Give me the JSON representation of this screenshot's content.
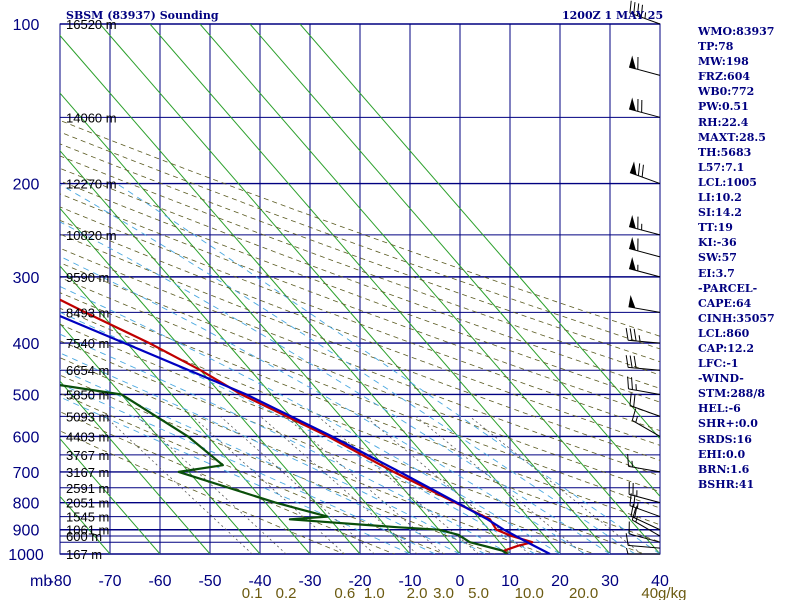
{
  "header": {
    "station": "SBSM (83937) Sounding",
    "time": "1200Z  1 MAY 25"
  },
  "indices": [
    "WMO:83937",
    "TP:78",
    "MW:198",
    "FRZ:604",
    "WB0:772",
    "PW:0.51",
    "RH:22.4",
    "MAXT:28.5",
    "TH:5683",
    "L57:7.1",
    "LCL:1005",
    "LI:10.2",
    "SI:14.2",
    "TT:19",
    "KI:-36",
    "SW:57",
    "EI:3.7",
    "-PARCEL-",
    "CAPE:64",
    "CINH:35057",
    "LCL:860",
    "CAP:12.2",
    "LFC:-1",
    "-WIND-",
    "STM:288/8",
    "HEL:-6",
    "SHR+:0.0",
    "SRDS:16",
    "EHI:0.0",
    "BRN:1.6",
    "BSHR:41"
  ],
  "chart_data": {
    "type": "line",
    "title": "SBSM (83937) Sounding",
    "xlabel": "",
    "ylabel": "mb",
    "y_scale": "log-pressure (skew-T)",
    "x_range_at_1000mb": [
      -80,
      40
    ],
    "y_range": [
      1000,
      100
    ],
    "pressure_ticks": [
      100,
      200,
      300,
      400,
      500,
      600,
      700,
      800,
      900,
      1000
    ],
    "temperature_ticks": [
      -80,
      -70,
      -60,
      -50,
      -40,
      -30,
      -20,
      -10,
      0,
      10,
      20,
      30,
      40
    ],
    "mixing_ratio_labels": [
      "0.1",
      "0.2",
      "0.6",
      "1.0",
      "2.0",
      "3.0",
      "5.0",
      "10.0",
      "20.0",
      "40g/kg"
    ],
    "height_labels": [
      {
        "p": 100,
        "text": "16520 m"
      },
      {
        "p": 150,
        "text": "14060 m"
      },
      {
        "p": 200,
        "text": "12270 m"
      },
      {
        "p": 250,
        "text": "10820 m"
      },
      {
        "p": 300,
        "text": "9590 m"
      },
      {
        "p": 350,
        "text": "8493 m"
      },
      {
        "p": 400,
        "text": "7540 m"
      },
      {
        "p": 450,
        "text": "6654 m"
      },
      {
        "p": 500,
        "text": "5850 m"
      },
      {
        "p": 550,
        "text": "5093 m"
      },
      {
        "p": 600,
        "text": "4403 m"
      },
      {
        "p": 650,
        "text": "3767 m"
      },
      {
        "p": 700,
        "text": "3167 m"
      },
      {
        "p": 750,
        "text": "2591 m"
      },
      {
        "p": 800,
        "text": "2051 m"
      },
      {
        "p": 850,
        "text": "1545 m"
      },
      {
        "p": 900,
        "text": "1061 m"
      },
      {
        "p": 925,
        "text": "600 m"
      },
      {
        "p": 1000,
        "text": "167 m"
      }
    ],
    "series": [
      {
        "name": "temperature",
        "color": "#c00000",
        "points": [
          [
            1000,
            9.5
          ],
          [
            985,
            9.5
          ],
          [
            965,
            13
          ],
          [
            950,
            16.5
          ],
          [
            925,
            13.5
          ],
          [
            900,
            11.5
          ],
          [
            860,
            12
          ],
          [
            800,
            8
          ],
          [
            700,
            1
          ],
          [
            600,
            -6
          ],
          [
            500,
            -16
          ],
          [
            450,
            -20
          ],
          [
            400,
            -25.5
          ],
          [
            350,
            -33
          ],
          [
            300,
            -41
          ],
          [
            250,
            -48
          ],
          [
            200,
            -55
          ],
          [
            170,
            -62
          ],
          [
            150,
            -66.5
          ],
          [
            120,
            -72
          ],
          [
            100,
            -78
          ]
        ]
      },
      {
        "name": "dewpoint",
        "color": "#0a4f0a",
        "points": [
          [
            1000,
            9.5
          ],
          [
            985,
            9
          ],
          [
            950,
            4
          ],
          [
            920,
            3
          ],
          [
            900,
            0
          ],
          [
            890,
            -8
          ],
          [
            860,
            -28
          ],
          [
            850,
            -20
          ],
          [
            800,
            -28
          ],
          [
            700,
            -42
          ],
          [
            680,
            -32
          ],
          [
            600,
            -34
          ],
          [
            500,
            -40
          ],
          [
            460,
            -62
          ],
          [
            440,
            -60
          ],
          [
            400,
            -58
          ],
          [
            360,
            -62
          ],
          [
            300,
            -64
          ],
          [
            280,
            -70
          ],
          [
            250,
            -69
          ],
          [
            230,
            -80
          ],
          [
            200,
            -87
          ],
          [
            150,
            -106
          ]
        ]
      },
      {
        "name": "parcel",
        "color": "#0000c0",
        "points": [
          [
            1000,
            18
          ],
          [
            960,
            16
          ],
          [
            900,
            13
          ],
          [
            860,
            11.5
          ],
          [
            800,
            8.3
          ],
          [
            700,
            2.2
          ],
          [
            600,
            -5.2
          ],
          [
            500,
            -15
          ],
          [
            400,
            -30.5
          ],
          [
            300,
            -50.5
          ],
          [
            250,
            -62.5
          ],
          [
            200,
            -76.5
          ],
          [
            160,
            -90
          ],
          [
            130,
            -102
          ]
        ]
      }
    ],
    "wind_barbs": [
      {
        "p": 1000,
        "dir": 270,
        "spd": 5
      },
      {
        "p": 975,
        "dir": 275,
        "spd": 10
      },
      {
        "p": 950,
        "dir": 285,
        "spd": 10
      },
      {
        "p": 925,
        "dir": 300,
        "spd": 15
      },
      {
        "p": 900,
        "dir": 295,
        "spd": 20
      },
      {
        "p": 850,
        "dir": 290,
        "spd": 25
      },
      {
        "p": 800,
        "dir": 285,
        "spd": 25
      },
      {
        "p": 700,
        "dir": 280,
        "spd": 15
      },
      {
        "p": 600,
        "dir": 300,
        "spd": 15
      },
      {
        "p": 550,
        "dir": 290,
        "spd": 20
      },
      {
        "p": 500,
        "dir": 280,
        "spd": 25
      },
      {
        "p": 450,
        "dir": 275,
        "spd": 30
      },
      {
        "p": 400,
        "dir": 275,
        "spd": 35
      },
      {
        "p": 350,
        "dir": 280,
        "spd": 50
      },
      {
        "p": 300,
        "dir": 285,
        "spd": 55
      },
      {
        "p": 275,
        "dir": 285,
        "spd": 60
      },
      {
        "p": 250,
        "dir": 285,
        "spd": 65
      },
      {
        "p": 200,
        "dir": 290,
        "spd": 70
      },
      {
        "p": 150,
        "dir": 285,
        "spd": 70
      },
      {
        "p": 125,
        "dir": 285,
        "spd": 60
      },
      {
        "p": 100,
        "dir": 290,
        "spd": 45
      }
    ],
    "grid": true
  }
}
